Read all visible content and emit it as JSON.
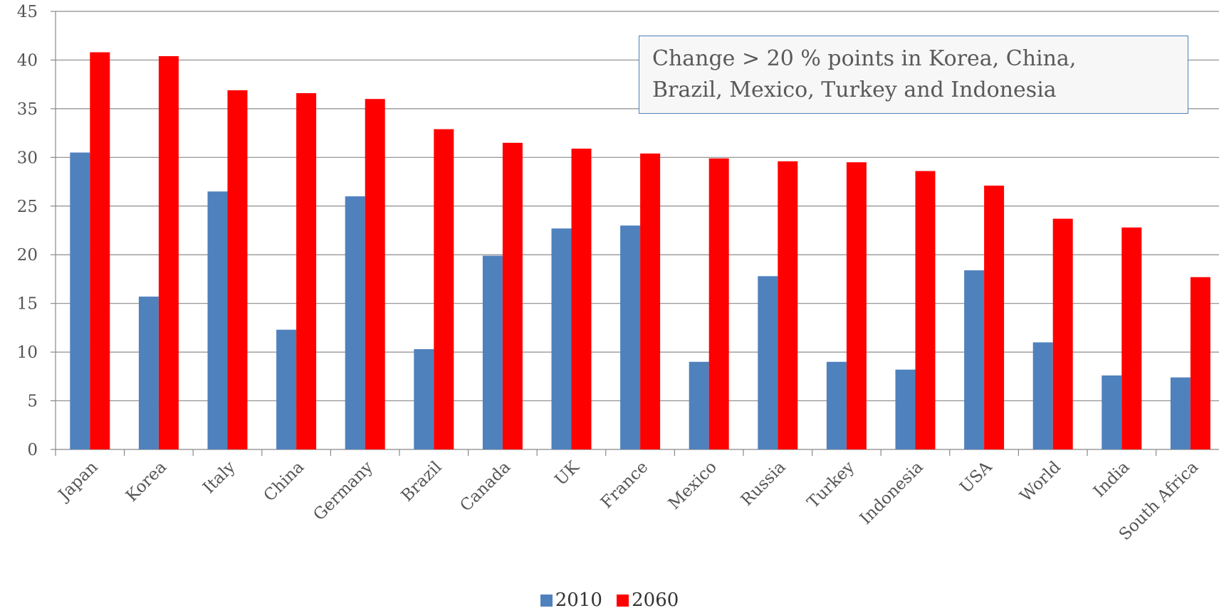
{
  "chart_data": {
    "type": "bar",
    "title": "",
    "xlabel": "",
    "ylabel": "",
    "ylim": [
      0,
      45
    ],
    "yticks": [
      0,
      5,
      10,
      15,
      20,
      25,
      30,
      35,
      40,
      45
    ],
    "grid": true,
    "legend_placement": "bottom-center",
    "categories": [
      "Japan",
      "Korea",
      "Italy",
      "China",
      "Germany",
      "Brazil",
      "Canada",
      "UK",
      "France",
      "Mexico",
      "Russia",
      "Turkey",
      "Indonesia",
      "USA",
      "World",
      "India",
      "South Africa"
    ],
    "series": [
      {
        "name": "2010",
        "color": "#4f81bd",
        "values": [
          30.5,
          15.7,
          26.5,
          12.3,
          26.0,
          10.3,
          19.9,
          22.7,
          23.0,
          9.0,
          17.8,
          9.0,
          8.2,
          18.4,
          11.0,
          7.6,
          7.4
        ]
      },
      {
        "name": "2060",
        "color": "#ff0000",
        "values": [
          40.8,
          40.4,
          36.9,
          36.6,
          36.0,
          32.9,
          31.5,
          30.9,
          30.4,
          29.9,
          29.6,
          29.5,
          28.6,
          27.1,
          23.7,
          22.8,
          17.7
        ]
      }
    ],
    "annotation": {
      "line1": "Change > 20 % points in Korea, China,",
      "line2": "Brazil, Mexico, Turkey and Indonesia"
    }
  }
}
